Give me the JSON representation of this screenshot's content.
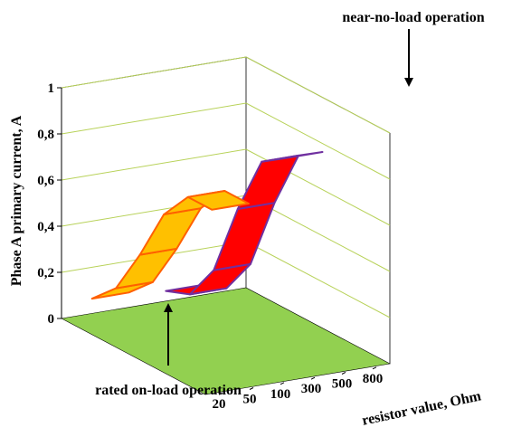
{
  "chart_data": {
    "type": "3d-ribbon",
    "ylabel": "Phase A primary current, A",
    "xlabel": "resistor value, Ohm",
    "ylim": [
      0,
      1
    ],
    "y_ticks": [
      "0",
      "0,2",
      "0,4",
      "0,6",
      "0,8",
      "1"
    ],
    "x_ticks": [
      "20",
      "50",
      "100",
      "300",
      "500",
      "800"
    ],
    "series": [
      {
        "name": "rated on-load operation",
        "color": "#ffc000",
        "edge_color": "#ff6000",
        "values": [
          0.1,
          0.2,
          0.4,
          0.63,
          0.76,
          0.76
        ]
      },
      {
        "name": "near-no-load operation",
        "color": "#ff0000",
        "edge_color": "#7030a0",
        "values": [
          0.08,
          0.12,
          0.28,
          0.6,
          0.86,
          0.93
        ]
      }
    ],
    "annotations": [
      {
        "text": "near-no-load operation",
        "series": 1,
        "arrow": "down"
      },
      {
        "text": "rated on-load operation",
        "series": 0,
        "arrow": "up"
      }
    ],
    "floor_color": "#92d050",
    "grid_color": "#b8d25a",
    "grid": true
  }
}
